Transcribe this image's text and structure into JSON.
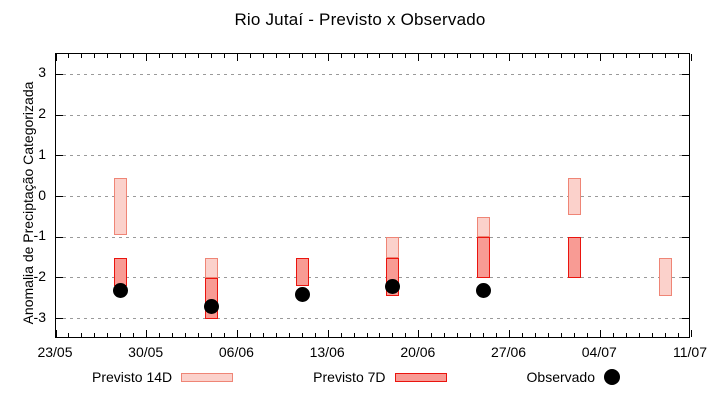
{
  "chart": {
    "title": "Rio Jutaí - Previsto x Observado",
    "ylabel": "Anomalia de Preciptação Categorizada",
    "colors": {
      "previsto14_fill": "#fbd1cb",
      "previsto14_stroke": "#ef8576",
      "previsto7_fill": "#f89b94",
      "previsto7_stroke": "#ea140e",
      "observado": "#000000",
      "grid": "#9a9a9a",
      "axis": "#000000"
    }
  },
  "legend": {
    "items": [
      {
        "label": "Previsto 14D",
        "swatch": "previsto-14d"
      },
      {
        "label": "Previsto 7D",
        "swatch": "previsto-7d"
      },
      {
        "label": "Observado",
        "swatch": "observado-dot"
      }
    ],
    "position": "bottom"
  },
  "chart_data": {
    "type": "bar",
    "subtype": "range-bars-with-scatter",
    "title": "Rio Jutaí - Previsto x Observado",
    "xlabel": "",
    "ylabel": "Anomalia de Preciptação Categorizada",
    "ylim": [
      -3.5,
      3.5
    ],
    "yticks": [
      -3,
      -2,
      -1,
      0,
      1,
      2,
      3
    ],
    "grid": true,
    "legend_position": "bottom",
    "x_span_days": 49,
    "xticks": [
      {
        "day": 0,
        "label": "23/05"
      },
      {
        "day": 7,
        "label": "30/05"
      },
      {
        "day": 14,
        "label": "06/06"
      },
      {
        "day": 21,
        "label": "13/06"
      },
      {
        "day": 28,
        "label": "20/06"
      },
      {
        "day": 35,
        "label": "27/06"
      },
      {
        "day": 42,
        "label": "04/07"
      },
      {
        "day": 49,
        "label": "11/07"
      }
    ],
    "minor_xtick_every_days": 1,
    "groups": [
      {
        "date": "28/05",
        "day": 5,
        "previsto14": [
          -0.95,
          0.45
        ],
        "previsto7": [
          -2.2,
          -1.5
        ],
        "observado": -2.3
      },
      {
        "date": "04/06",
        "day": 12,
        "previsto14": [
          -2.0,
          -1.5
        ],
        "previsto7": [
          -3.0,
          -2.0
        ],
        "observado": -2.7
      },
      {
        "date": "11/06",
        "day": 19,
        "previsto14": null,
        "previsto7": [
          -2.2,
          -1.5
        ],
        "observado": -2.4
      },
      {
        "date": "18/06",
        "day": 26,
        "previsto14": [
          -1.5,
          -1.0
        ],
        "previsto7": [
          -2.45,
          -1.5
        ],
        "observado": -2.2
      },
      {
        "date": "25/06",
        "day": 33,
        "previsto14": [
          -1.0,
          -0.5
        ],
        "previsto7": [
          -2.0,
          -1.0
        ],
        "observado": -2.3
      },
      {
        "date": "02/07",
        "day": 40,
        "previsto14": [
          -0.45,
          0.45
        ],
        "previsto7": [
          -2.0,
          -1.0
        ],
        "observado": null
      },
      {
        "date": "09/07",
        "day": 47,
        "previsto14": [
          -2.45,
          -1.5
        ],
        "previsto7": null,
        "observado": null
      }
    ],
    "series": [
      {
        "name": "Previsto 14D",
        "type": "range-bar"
      },
      {
        "name": "Previsto 7D",
        "type": "range-bar"
      },
      {
        "name": "Observado",
        "type": "scatter"
      }
    ]
  }
}
